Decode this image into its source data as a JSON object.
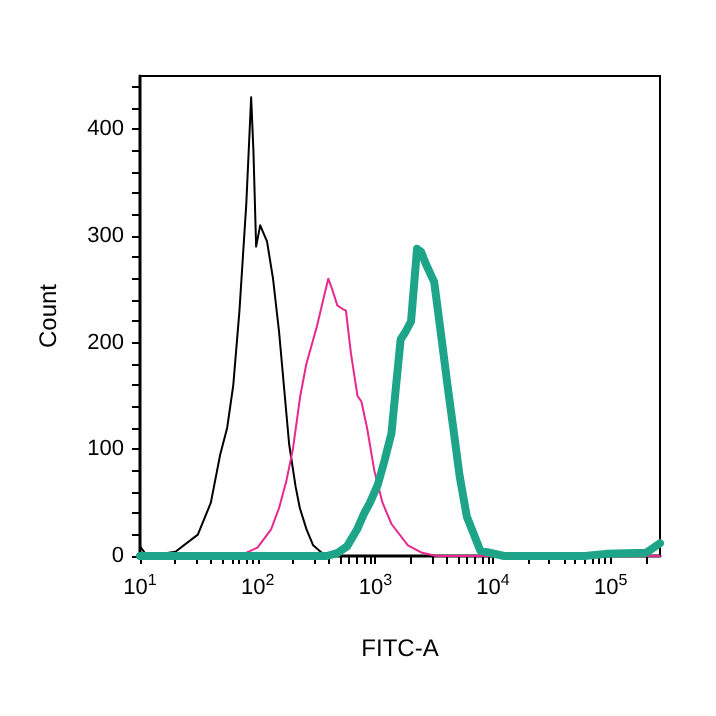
{
  "chart_data": {
    "type": "line",
    "xlabel": "FITC-A",
    "ylabel": "Count",
    "log": "x",
    "grid": false,
    "marker": "none",
    "line_style": "solid",
    "xlim": [
      10,
      262144
    ],
    "ylim": [
      0,
      450
    ],
    "xticks": [
      {
        "value": 10,
        "label": "10$^{1}$"
      },
      {
        "value": 20,
        "label": null
      },
      {
        "value": 30,
        "label": null
      },
      {
        "value": 40,
        "label": null
      },
      {
        "value": 50,
        "label": null
      },
      {
        "value": 60,
        "label": null
      },
      {
        "value": 70,
        "label": null
      },
      {
        "value": 80,
        "label": null
      },
      {
        "value": 90,
        "label": null
      },
      {
        "value": 100,
        "label": "10$^{2}$"
      },
      {
        "value": 200,
        "label": null
      },
      {
        "value": 300,
        "label": null
      },
      {
        "value": 400,
        "label": null
      },
      {
        "value": 500,
        "label": null
      },
      {
        "value": 600,
        "label": null
      },
      {
        "value": 700,
        "label": null
      },
      {
        "value": 800,
        "label": null
      },
      {
        "value": 900,
        "label": null
      },
      {
        "value": 1000,
        "label": "10$^{3}$"
      },
      {
        "value": 2000,
        "label": null
      },
      {
        "value": 3000,
        "label": null
      },
      {
        "value": 4000,
        "label": null
      },
      {
        "value": 5000,
        "label": null
      },
      {
        "value": 6000,
        "label": null
      },
      {
        "value": 7000,
        "label": null
      },
      {
        "value": 8000,
        "label": null
      },
      {
        "value": 9000,
        "label": null
      },
      {
        "value": 10000,
        "label": "10$^{4}$"
      },
      {
        "value": 20000,
        "label": null
      },
      {
        "value": 30000,
        "label": null
      },
      {
        "value": 40000,
        "label": null
      },
      {
        "value": 50000,
        "label": null
      },
      {
        "value": 60000,
        "label": null
      },
      {
        "value": 70000,
        "label": null
      },
      {
        "value": 80000,
        "label": null
      },
      {
        "value": 90000,
        "label": null
      },
      {
        "value": 100000,
        "label": "10$^{5}$"
      },
      {
        "value": 200000,
        "label": null
      }
    ],
    "yticks": [
      0,
      {
        "value": 20,
        "label": null
      },
      {
        "value": 40,
        "label": null
      },
      {
        "value": 60,
        "label": null
      },
      {
        "value": 80,
        "label": null
      },
      100,
      {
        "value": 120,
        "label": null
      },
      {
        "value": 140,
        "label": null
      },
      {
        "value": 160,
        "label": null
      },
      {
        "value": 180,
        "label": null
      },
      200,
      {
        "value": 220,
        "label": null
      },
      {
        "value": 240,
        "label": null
      },
      {
        "value": 260,
        "label": null
      },
      {
        "value": 280,
        "label": null
      },
      300,
      {
        "value": 320,
        "label": null
      },
      {
        "value": 340,
        "label": null
      },
      {
        "value": 360,
        "label": null
      },
      {
        "value": 380,
        "label": null
      },
      400,
      {
        "value": 420,
        "label": null
      },
      {
        "value": 440,
        "label": null
      }
    ],
    "series": [
      {
        "color": "#000000",
        "x": [
          10,
          11.5,
          20,
          31,
          40,
          48,
          55,
          62,
          70,
          80,
          88,
          92,
          97,
          105,
          120,
          135,
          152,
          170,
          185,
          210,
          228,
          260,
          296,
          350,
          440
        ],
        "values": [
          9,
          0,
          4,
          20,
          50,
          95,
          120,
          160,
          230,
          330,
          430,
          380,
          290,
          310,
          295,
          260,
          210,
          150,
          105,
          65,
          45,
          25,
          10,
          3,
          0
        ]
      },
      {
        "color": "#e8288f",
        "x": [
          70,
          100,
          130,
          152,
          175,
          199,
          230,
          259,
          318,
          360,
          398,
          430,
          475,
          520,
          562,
          620,
          705,
          760,
          850,
          980,
          1150,
          1370,
          1890,
          2500,
          3300,
          262144
        ],
        "values": [
          0,
          8,
          25,
          45,
          70,
          100,
          150,
          180,
          215,
          240,
          260,
          250,
          235,
          232,
          230,
          190,
          150,
          145,
          120,
          80,
          50,
          30,
          10,
          3,
          0,
          0
        ]
      },
      {
        "color": "#1ea589",
        "x": [
          10,
          387,
          480,
          575,
          700,
          803,
          900,
          1050,
          1200,
          1370,
          1500,
          1640,
          1800,
          2010,
          2260,
          2450,
          2680,
          3160,
          3720,
          4100,
          4590,
          5200,
          5980,
          7800,
          12400,
          60000,
          91000,
          200000,
          262000
        ],
        "values": [
          0,
          0,
          3,
          9,
          25,
          40,
          50,
          67,
          90,
          115,
          160,
          203,
          210,
          220,
          288,
          285,
          274,
          257,
          197,
          160,
          120,
          75,
          37,
          5,
          0,
          0,
          2,
          3,
          12
        ]
      }
    ]
  }
}
